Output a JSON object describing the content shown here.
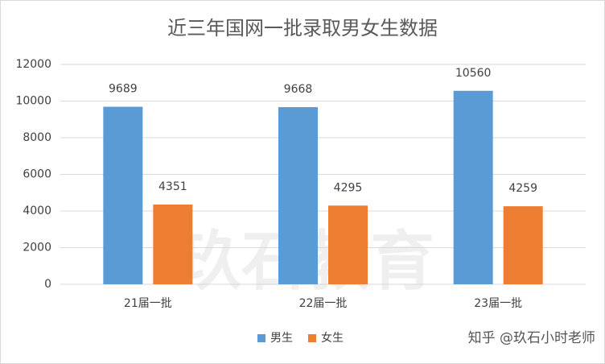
{
  "chart_data": {
    "type": "bar",
    "title": "近三年国网一批录取男女生数据",
    "categories": [
      "21届一批",
      "22届一批",
      "23届一批"
    ],
    "series": [
      {
        "name": "男生",
        "color": "#5b9bd5",
        "values": [
          9689,
          9668,
          10560
        ]
      },
      {
        "name": "女生",
        "color": "#ed7d31",
        "values": [
          4351,
          4295,
          4259
        ]
      }
    ],
    "ylim": [
      0,
      12000
    ],
    "yticks": [
      0,
      2000,
      4000,
      6000,
      8000,
      10000,
      12000
    ],
    "grid": true,
    "legend": "bottom",
    "watermarks": [
      "玖石教育",
      "知乎 @玖石小时老师"
    ]
  }
}
